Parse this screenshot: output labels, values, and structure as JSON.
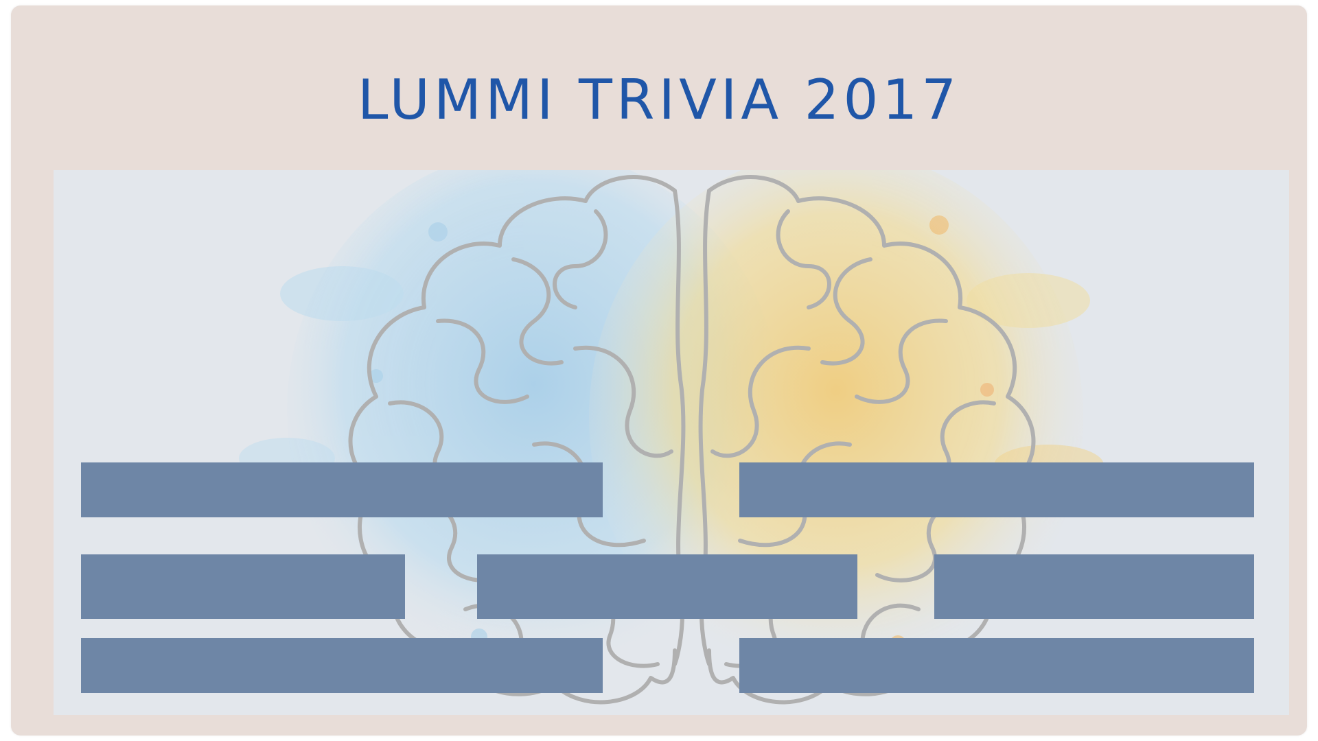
{
  "game": {
    "title": "LUMMI TRIVIA 2017"
  },
  "colors": {
    "frame": "#e8ddd8",
    "board": "#e3e7ec",
    "title": "#1f56a8",
    "answer_slot": "#6e86a6",
    "splash_left": "#a9cfe6",
    "splash_right": "#f1d58a",
    "brain_outline": "#b3b3b3"
  },
  "board": {
    "background_icon": "brain-icon",
    "answer_slots": [
      {
        "id": 1,
        "row": 1,
        "label": ""
      },
      {
        "id": 2,
        "row": 1,
        "label": ""
      },
      {
        "id": 3,
        "row": 2,
        "label": ""
      },
      {
        "id": 4,
        "row": 2,
        "label": ""
      },
      {
        "id": 5,
        "row": 2,
        "label": ""
      },
      {
        "id": 6,
        "row": 3,
        "label": ""
      },
      {
        "id": 7,
        "row": 3,
        "label": ""
      }
    ]
  }
}
